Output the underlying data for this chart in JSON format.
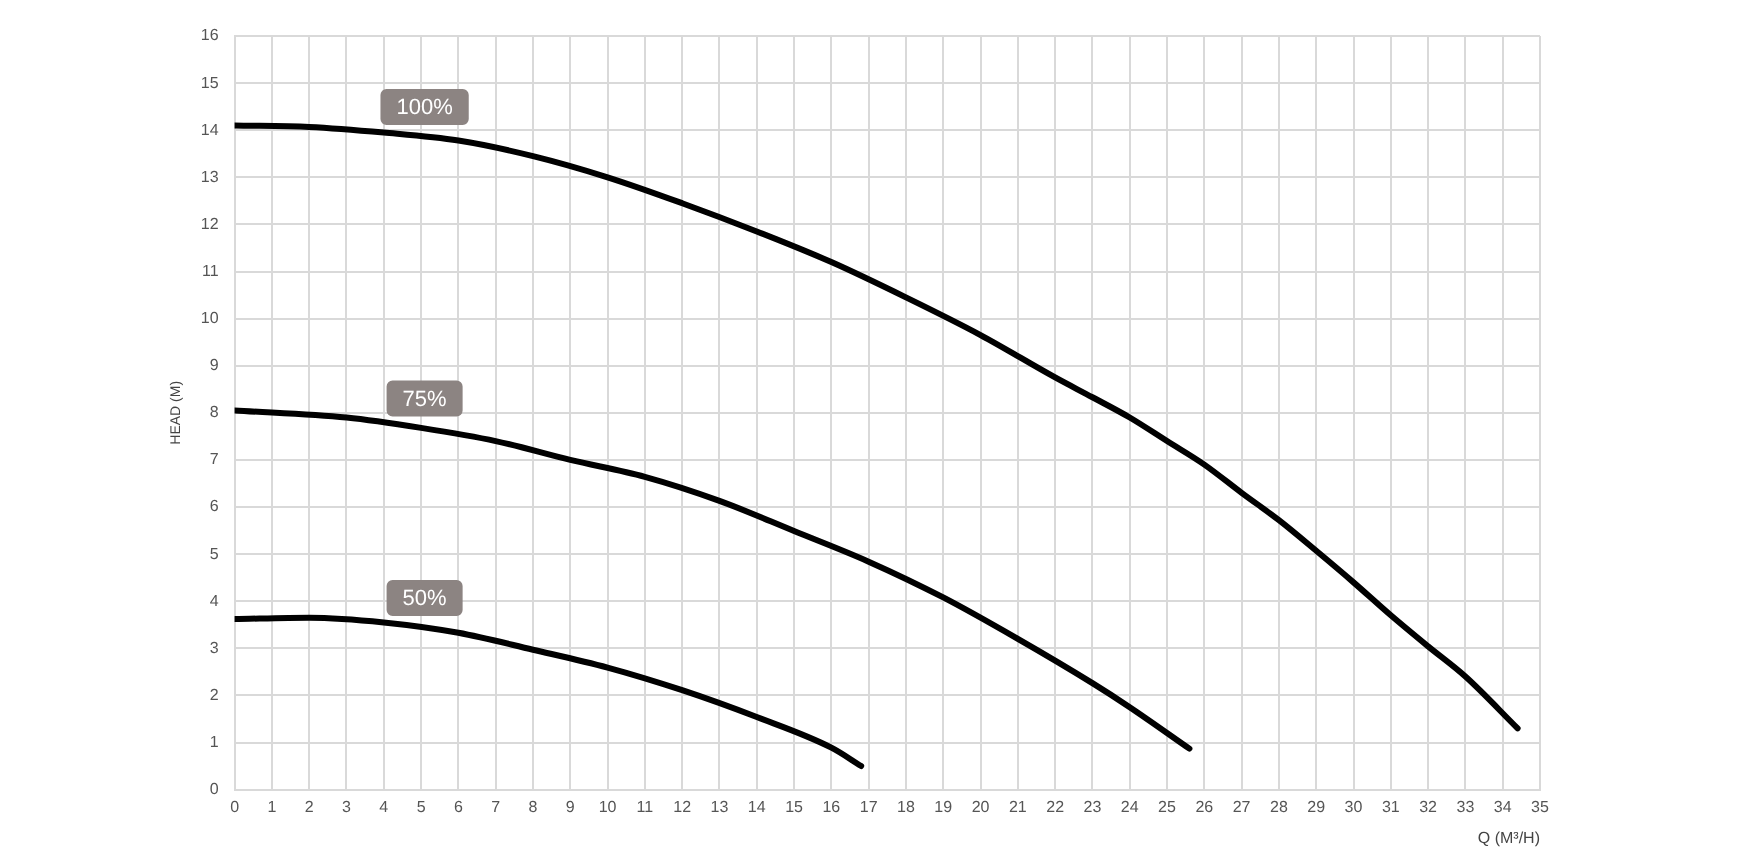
{
  "chart_data": {
    "type": "line",
    "xlabel": "Q (M³/H)",
    "ylabel": "HEAD (M)",
    "xlim": [
      0,
      35
    ],
    "xticks": [
      0,
      1,
      2,
      3,
      4,
      5,
      6,
      7,
      8,
      9,
      10,
      11,
      12,
      13,
      14,
      15,
      16,
      17,
      18,
      19,
      20,
      21,
      22,
      23,
      24,
      25,
      26,
      27,
      28,
      29,
      30,
      31,
      32,
      33,
      34,
      35
    ],
    "ylim": [
      0,
      16
    ],
    "yticks": [
      0,
      1,
      2,
      3,
      4,
      5,
      6,
      7,
      8,
      9,
      10,
      11,
      12,
      13,
      14,
      15,
      16
    ],
    "grid": true,
    "legend": false,
    "marker": "none",
    "line_style": "solid",
    "series": [
      {
        "name": "100%",
        "color": "#000000",
        "x": [
          0,
          2,
          4,
          6,
          8,
          10,
          12,
          14,
          16,
          18,
          20,
          22,
          23,
          24,
          25,
          26,
          27,
          28,
          29,
          30,
          31,
          32,
          33,
          34.4
        ],
        "values": [
          14.1,
          14.07,
          13.95,
          13.78,
          13.45,
          13.0,
          12.45,
          11.85,
          11.2,
          10.45,
          9.65,
          8.75,
          8.33,
          7.9,
          7.4,
          6.9,
          6.3,
          5.72,
          5.07,
          4.4,
          3.7,
          3.04,
          2.4,
          1.3
        ]
      },
      {
        "name": "75%",
        "color": "#000000",
        "x": [
          0,
          3,
          5,
          7,
          9,
          11,
          13,
          15,
          17,
          19,
          21,
          23,
          24,
          25.6
        ],
        "values": [
          8.05,
          7.9,
          7.68,
          7.4,
          7.0,
          6.64,
          6.13,
          5.49,
          4.84,
          4.08,
          3.2,
          2.26,
          1.75,
          0.87
        ]
      },
      {
        "name": "50%",
        "color": "#000000",
        "x": [
          0,
          2,
          4,
          6,
          8,
          10,
          12,
          14,
          16,
          16.8
        ],
        "values": [
          3.62,
          3.65,
          3.55,
          3.33,
          2.97,
          2.59,
          2.11,
          1.54,
          0.89,
          0.5
        ]
      }
    ]
  }
}
